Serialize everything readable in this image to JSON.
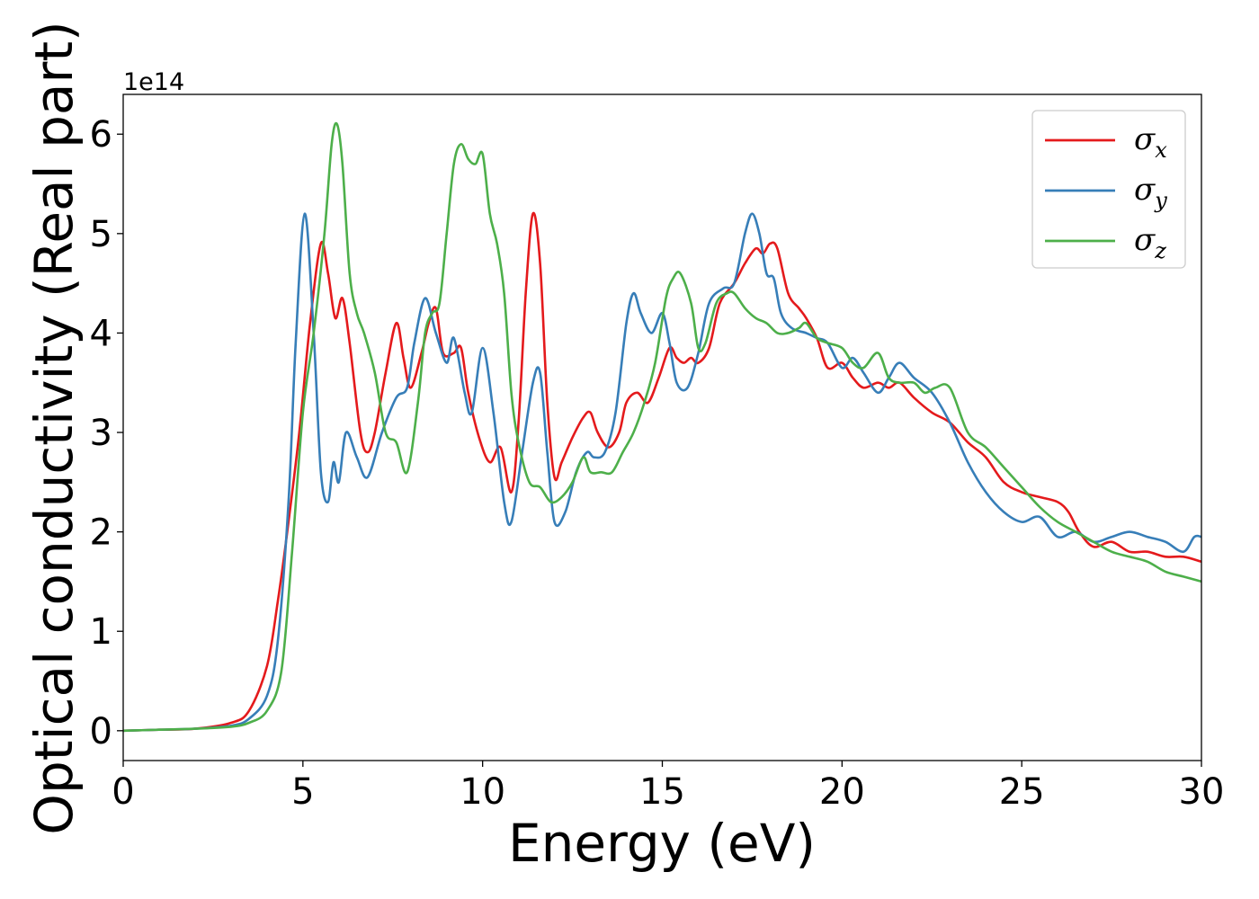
{
  "chart_data": {
    "type": "line",
    "title": "",
    "xlabel": "Energy (eV)",
    "ylabel": "Optical conductivity (Real part)",
    "y_offset_label": "1e14",
    "xlim": [
      0,
      30
    ],
    "ylim": [
      -0.3,
      6.4
    ],
    "xticks": [
      0,
      5,
      10,
      15,
      20,
      25,
      30
    ],
    "yticks": [
      0,
      1,
      2,
      3,
      4,
      5,
      6
    ],
    "grid": false,
    "legend_position": "top-right",
    "series": [
      {
        "name": "σx",
        "legend_symbol": "σ",
        "legend_subscript": "x",
        "color": "#e41a1c",
        "x": [
          0,
          1,
          2,
          3,
          3.5,
          4,
          4.3,
          4.6,
          4.9,
          5.2,
          5.5,
          5.7,
          5.9,
          6.1,
          6.3,
          6.6,
          6.8,
          7.0,
          7.3,
          7.6,
          7.8,
          8.0,
          8.3,
          8.5,
          8.7,
          8.9,
          9.2,
          9.4,
          9.6,
          9.9,
          10.2,
          10.5,
          10.8,
          11.0,
          11.2,
          11.4,
          11.6,
          11.8,
          12.0,
          12.2,
          12.5,
          12.8,
          13.0,
          13.2,
          13.5,
          13.8,
          14.0,
          14.3,
          14.6,
          14.9,
          15.2,
          15.4,
          15.6,
          15.8,
          16.0,
          16.3,
          16.6,
          17.0,
          17.3,
          17.6,
          17.8,
          18.0,
          18.2,
          18.5,
          18.8,
          19.0,
          19.3,
          19.6,
          20.0,
          20.3,
          20.6,
          21.0,
          21.3,
          21.6,
          22.0,
          22.5,
          23.0,
          23.5,
          24.0,
          24.5,
          25.0,
          25.5,
          26.0,
          26.3,
          26.6,
          27.0,
          27.5,
          28.0,
          28.5,
          29.0,
          29.5,
          30.0
        ],
        "values": [
          0,
          0.01,
          0.02,
          0.08,
          0.2,
          0.65,
          1.3,
          2.1,
          3.0,
          4.1,
          4.9,
          4.6,
          4.15,
          4.35,
          3.9,
          3.0,
          2.8,
          3.0,
          3.6,
          4.1,
          3.75,
          3.45,
          3.8,
          4.1,
          4.25,
          3.8,
          3.8,
          3.85,
          3.4,
          2.95,
          2.7,
          2.85,
          2.4,
          3.1,
          4.4,
          5.2,
          4.7,
          3.3,
          2.55,
          2.7,
          2.95,
          3.15,
          3.2,
          3.0,
          2.85,
          3.0,
          3.3,
          3.4,
          3.3,
          3.55,
          3.85,
          3.75,
          3.7,
          3.75,
          3.7,
          3.85,
          4.3,
          4.5,
          4.7,
          4.85,
          4.8,
          4.9,
          4.85,
          4.4,
          4.25,
          4.15,
          3.95,
          3.65,
          3.7,
          3.55,
          3.45,
          3.5,
          3.45,
          3.5,
          3.35,
          3.2,
          3.1,
          2.9,
          2.75,
          2.5,
          2.4,
          2.35,
          2.3,
          2.2,
          2.0,
          1.85,
          1.9,
          1.8,
          1.8,
          1.75,
          1.75,
          1.7
        ]
      },
      {
        "name": "σy",
        "legend_symbol": "σ",
        "legend_subscript": "y",
        "color": "#377eb8",
        "x": [
          0,
          1,
          2,
          3,
          3.5,
          4,
          4.3,
          4.6,
          4.8,
          5.05,
          5.3,
          5.5,
          5.7,
          5.85,
          6.0,
          6.2,
          6.5,
          6.8,
          7.2,
          7.6,
          7.9,
          8.1,
          8.4,
          8.7,
          9.0,
          9.2,
          9.5,
          9.7,
          10.0,
          10.3,
          10.6,
          10.8,
          11.1,
          11.4,
          11.6,
          11.8,
          12.0,
          12.3,
          12.6,
          12.9,
          13.1,
          13.4,
          13.7,
          14.0,
          14.2,
          14.4,
          14.7,
          15.0,
          15.2,
          15.4,
          15.7,
          16.0,
          16.3,
          16.7,
          17.0,
          17.3,
          17.5,
          17.7,
          17.9,
          18.1,
          18.3,
          18.6,
          19.0,
          19.3,
          19.6,
          20.0,
          20.3,
          20.6,
          21.0,
          21.3,
          21.6,
          22.0,
          22.5,
          23.0,
          23.5,
          24.0,
          24.5,
          25.0,
          25.5,
          26.0,
          26.5,
          27.0,
          27.5,
          28.0,
          28.5,
          29.0,
          29.5,
          29.8,
          30.0
        ],
        "values": [
          0,
          0.01,
          0.02,
          0.05,
          0.12,
          0.35,
          0.9,
          2.3,
          3.9,
          5.2,
          4.0,
          2.6,
          2.3,
          2.7,
          2.5,
          3.0,
          2.75,
          2.55,
          3.0,
          3.35,
          3.45,
          3.9,
          4.35,
          4.0,
          3.7,
          3.95,
          3.4,
          3.2,
          3.85,
          3.2,
          2.3,
          2.1,
          2.8,
          3.5,
          3.6,
          2.8,
          2.1,
          2.2,
          2.6,
          2.8,
          2.75,
          2.8,
          3.2,
          4.1,
          4.4,
          4.2,
          4.0,
          4.2,
          3.9,
          3.5,
          3.45,
          3.8,
          4.3,
          4.45,
          4.5,
          5.0,
          5.2,
          5.0,
          4.6,
          4.55,
          4.2,
          4.05,
          4.0,
          3.95,
          3.9,
          3.65,
          3.75,
          3.6,
          3.4,
          3.55,
          3.7,
          3.55,
          3.4,
          3.1,
          2.7,
          2.4,
          2.2,
          2.1,
          2.15,
          1.95,
          2.0,
          1.9,
          1.95,
          2.0,
          1.95,
          1.9,
          1.8,
          1.95,
          1.95
        ]
      },
      {
        "name": "σz",
        "legend_symbol": "σ",
        "legend_subscript": "z",
        "color": "#4daf4a",
        "x": [
          0,
          1,
          2,
          3,
          3.5,
          4,
          4.4,
          4.7,
          5.0,
          5.3,
          5.6,
          5.8,
          5.95,
          6.1,
          6.3,
          6.5,
          6.7,
          7.0,
          7.3,
          7.6,
          7.9,
          8.2,
          8.4,
          8.6,
          8.8,
          9.0,
          9.2,
          9.4,
          9.6,
          9.8,
          10.0,
          10.2,
          10.4,
          10.6,
          10.8,
          11.0,
          11.3,
          11.6,
          11.9,
          12.2,
          12.5,
          12.8,
          13.0,
          13.3,
          13.6,
          13.9,
          14.2,
          14.5,
          14.8,
          15.1,
          15.3,
          15.5,
          15.8,
          16.0,
          16.2,
          16.5,
          16.8,
          17.0,
          17.3,
          17.6,
          17.9,
          18.2,
          18.5,
          18.8,
          19.0,
          19.3,
          19.6,
          20.0,
          20.3,
          20.6,
          21.0,
          21.3,
          21.6,
          22.0,
          22.3,
          22.6,
          23.0,
          23.5,
          24.0,
          24.5,
          25.0,
          25.5,
          26.0,
          26.5,
          27.0,
          27.5,
          28.0,
          28.5,
          29.0,
          29.5,
          30.0
        ],
        "values": [
          0,
          0.01,
          0.02,
          0.04,
          0.08,
          0.2,
          0.6,
          1.8,
          3.2,
          4.0,
          5.0,
          5.9,
          6.1,
          5.7,
          4.6,
          4.2,
          4.0,
          3.6,
          3.0,
          2.9,
          2.6,
          3.3,
          4.0,
          4.2,
          4.3,
          5.0,
          5.7,
          5.9,
          5.75,
          5.7,
          5.8,
          5.2,
          4.9,
          4.4,
          3.4,
          2.9,
          2.5,
          2.45,
          2.3,
          2.35,
          2.5,
          2.75,
          2.6,
          2.6,
          2.6,
          2.8,
          3.0,
          3.3,
          3.7,
          4.35,
          4.55,
          4.6,
          4.3,
          3.85,
          3.9,
          4.3,
          4.4,
          4.4,
          4.25,
          4.15,
          4.1,
          4.0,
          4.0,
          4.05,
          4.1,
          3.95,
          3.9,
          3.85,
          3.7,
          3.65,
          3.8,
          3.55,
          3.5,
          3.5,
          3.4,
          3.45,
          3.45,
          3.0,
          2.85,
          2.65,
          2.45,
          2.25,
          2.1,
          2.0,
          1.9,
          1.8,
          1.75,
          1.7,
          1.6,
          1.55,
          1.5
        ]
      }
    ]
  }
}
